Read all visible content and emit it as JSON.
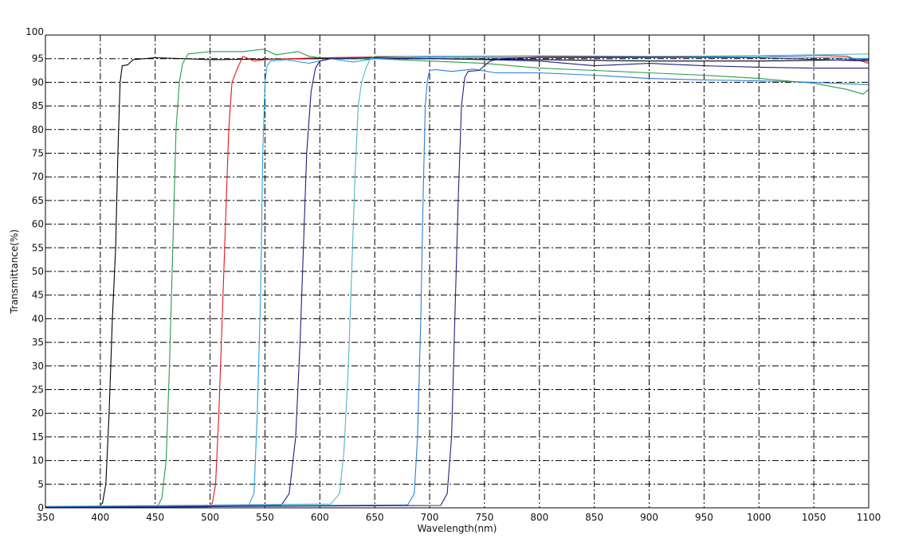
{
  "chart_data": {
    "type": "line",
    "title": "",
    "xlabel": "Wavelength(nm)",
    "ylabel": "Transmittance(%)",
    "xlim": [
      350,
      1100
    ],
    "ylim": [
      0,
      100
    ],
    "xticks": [
      350,
      400,
      450,
      500,
      550,
      600,
      650,
      700,
      750,
      800,
      850,
      900,
      950,
      1000,
      1050,
      1100
    ],
    "yticks": [
      0,
      5,
      10,
      15,
      20,
      25,
      30,
      35,
      40,
      45,
      50,
      55,
      60,
      65,
      70,
      75,
      80,
      85,
      90,
      95,
      100
    ],
    "grid": true,
    "grid_style": "dash-dot",
    "legend": "none",
    "series": [
      {
        "color": "#000000",
        "x": [
          350,
          398,
          402,
          405,
          408,
          411,
          414,
          416,
          418,
          420,
          425,
          430,
          450,
          500,
          600,
          700,
          800,
          900,
          1000,
          1100
        ],
        "y": [
          0.1,
          0.2,
          1,
          5,
          20,
          40,
          55,
          75,
          90,
          93.5,
          93.7,
          94.8,
          95.2,
          94.8,
          95,
          95,
          94.8,
          94.5,
          94.5,
          94.8
        ]
      },
      {
        "color": "#2a9a4a",
        "x": [
          350,
          452,
          456,
          460,
          463,
          466,
          469,
          472,
          475,
          480,
          500,
          530,
          549,
          560,
          580,
          590,
          600,
          650,
          700,
          750,
          800,
          850,
          900,
          950,
          1000,
          1050,
          1080,
          1095,
          1100
        ],
        "y": [
          0.2,
          0.3,
          2,
          10,
          30,
          55,
          80,
          90,
          94,
          96,
          96.5,
          96.5,
          97,
          95.8,
          96.5,
          95.5,
          95.2,
          95,
          94.5,
          94,
          93,
          92.5,
          92,
          91.5,
          90.8,
          89.8,
          88.5,
          87.5,
          88.5
        ]
      },
      {
        "color": "#e8141a",
        "x": [
          350,
          498,
          502,
          505,
          508,
          511,
          514,
          517,
          520,
          525,
          530,
          535,
          540,
          550,
          600,
          700,
          800,
          900,
          1000,
          1050,
          1080,
          1100
        ],
        "y": [
          0.1,
          0.2,
          1,
          5,
          20,
          40,
          60,
          80,
          90,
          93,
          95.5,
          95,
          94.5,
          94.8,
          95.2,
          95.5,
          95.5,
          95.4,
          95.6,
          95.7,
          95.5,
          94
        ]
      },
      {
        "color": "#2a9fe0",
        "x": [
          350,
          535,
          540,
          543,
          546,
          548,
          550,
          552,
          555,
          570,
          590,
          610,
          630,
          650,
          700,
          800,
          900,
          1000,
          1100
        ],
        "y": [
          0.2,
          0.5,
          3,
          20,
          45,
          75,
          90,
          93.5,
          94.5,
          94.8,
          94,
          95,
          94.3,
          95,
          95.3,
          95.2,
          95.2,
          95.5,
          95
        ]
      },
      {
        "color": "#1d1f80",
        "x": [
          350,
          565,
          572,
          578,
          582,
          585,
          588,
          592,
          596,
          600,
          610,
          650,
          700,
          750,
          800,
          850,
          900,
          950,
          1000,
          1050,
          1100
        ],
        "y": [
          0.2,
          0.6,
          3,
          15,
          35,
          55,
          75,
          88,
          93,
          94.5,
          95,
          95.2,
          95,
          94.8,
          94.5,
          93.5,
          94,
          93.5,
          93.2,
          93,
          93
        ]
      },
      {
        "color": "#4fb8c8",
        "x": [
          350,
          610,
          618,
          622,
          626,
          629,
          632,
          635,
          638,
          642,
          646,
          650,
          700,
          800,
          900,
          1000,
          1050,
          1100
        ],
        "y": [
          0.3,
          0.8,
          3,
          12,
          30,
          50,
          70,
          85,
          90,
          93,
          95,
          95.5,
          95.5,
          95.6,
          95.5,
          95.6,
          95.8,
          96
        ]
      },
      {
        "color": "#2c7fd6",
        "x": [
          350,
          680,
          686,
          689,
          692,
          694,
          696,
          698,
          700,
          705,
          720,
          740,
          760,
          800,
          850,
          900,
          950,
          1000,
          1050,
          1100
        ],
        "y": [
          0.2,
          0.6,
          3,
          15,
          40,
          65,
          85,
          90.5,
          92.5,
          92.7,
          92.3,
          92.8,
          92,
          92,
          91.5,
          90.8,
          90.5,
          90.3,
          90,
          89.5
        ]
      },
      {
        "color": "#23237a",
        "x": [
          350,
          710,
          716,
          720,
          723,
          726,
          729,
          732,
          735,
          745,
          755,
          765,
          800,
          900,
          1000,
          1100
        ],
        "y": [
          0.1,
          0.5,
          3,
          15,
          40,
          65,
          85,
          91,
          92.3,
          92.5,
          94.5,
          95,
          95.3,
          95.3,
          95.2,
          94.5
        ]
      }
    ]
  }
}
